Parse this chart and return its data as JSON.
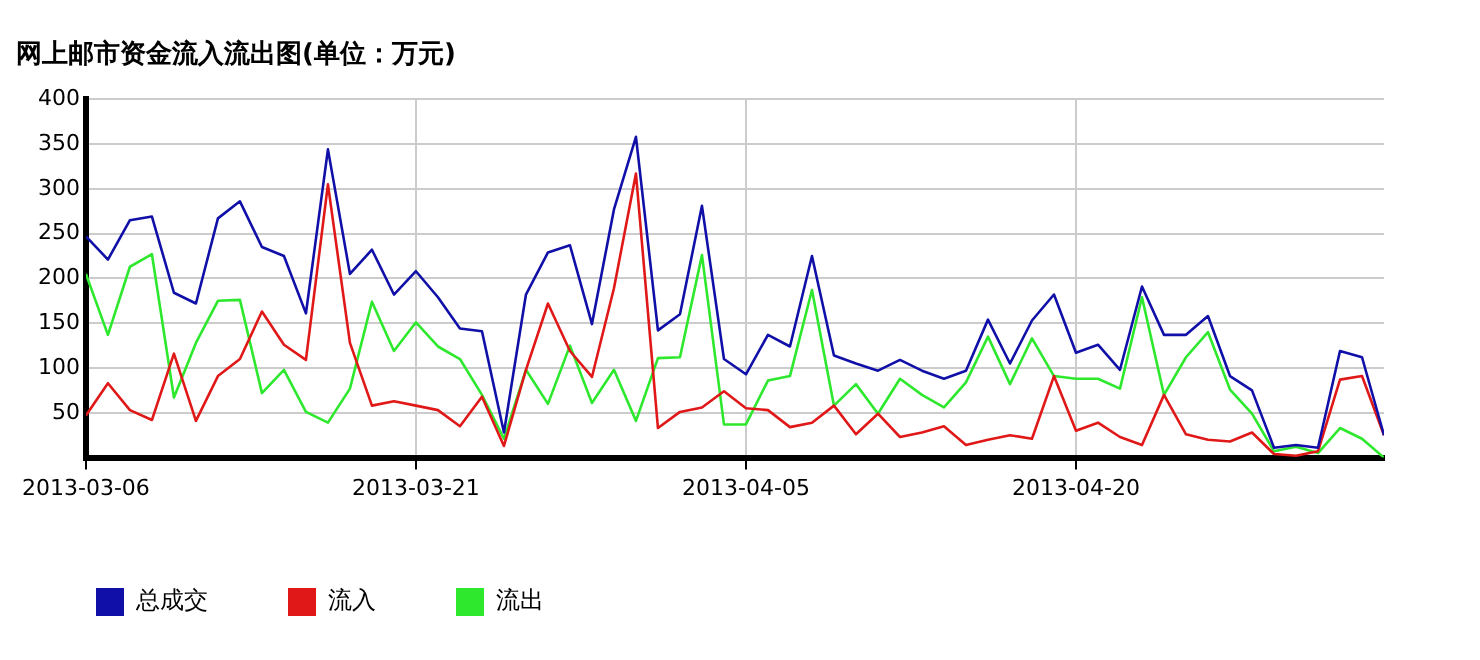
{
  "chart_data": {
    "type": "line",
    "title": "网上邮市资金流入流出图(单位：万元)",
    "x": [
      "2013-03-06",
      "2013-03-07",
      "2013-03-08",
      "2013-03-09",
      "2013-03-10",
      "2013-03-11",
      "2013-03-12",
      "2013-03-13",
      "2013-03-14",
      "2013-03-15",
      "2013-03-16",
      "2013-03-17",
      "2013-03-18",
      "2013-03-19",
      "2013-03-20",
      "2013-03-21",
      "2013-03-22",
      "2013-03-23",
      "2013-03-24",
      "2013-03-25",
      "2013-03-26",
      "2013-03-27",
      "2013-03-28",
      "2013-03-29",
      "2013-03-30",
      "2013-03-31",
      "2013-04-01",
      "2013-04-02",
      "2013-04-03",
      "2013-04-04",
      "2013-04-05",
      "2013-04-06",
      "2013-04-07",
      "2013-04-08",
      "2013-04-09",
      "2013-04-10",
      "2013-04-11",
      "2013-04-12",
      "2013-04-13",
      "2013-04-14",
      "2013-04-15",
      "2013-04-16",
      "2013-04-17",
      "2013-04-18",
      "2013-04-19",
      "2013-04-20",
      "2013-04-21",
      "2013-04-22",
      "2013-04-23",
      "2013-04-24",
      "2013-04-25",
      "2013-04-26",
      "2013-04-27",
      "2013-04-28",
      "2013-04-29",
      "2013-04-30",
      "2013-05-01",
      "2013-05-02",
      "2013-05-03",
      "2013-05-04"
    ],
    "series": [
      {
        "name": "总成交",
        "color": "#1010a8",
        "values": [
          247,
          221,
          265,
          269,
          184,
          172,
          267,
          286,
          235,
          225,
          161,
          344,
          205,
          232,
          182,
          208,
          179,
          144,
          141,
          28,
          182,
          229,
          237,
          149,
          277,
          358,
          142,
          160,
          281,
          110,
          93,
          137,
          124,
          225,
          114,
          105,
          97,
          109,
          97,
          88,
          97,
          154,
          105,
          153,
          182,
          117,
          126,
          98,
          191,
          137,
          137,
          158,
          91,
          75,
          11,
          14,
          11,
          119,
          112,
          25
        ]
      },
      {
        "name": "流入",
        "color": "#e01818",
        "values": [
          47,
          83,
          53,
          42,
          116,
          41,
          91,
          110,
          163,
          126,
          109,
          305,
          128,
          58,
          63,
          58,
          53,
          35,
          68,
          13,
          98,
          172,
          119,
          90,
          189,
          317,
          33,
          51,
          56,
          74,
          55,
          53,
          34,
          39,
          58,
          26,
          49,
          23,
          28,
          35,
          14,
          20,
          25,
          21,
          91,
          30,
          39,
          23,
          14,
          70,
          26,
          20,
          18,
          28,
          4,
          2,
          7,
          87,
          91,
          25
        ]
      },
      {
        "name": "流出",
        "color": "#2ee82e",
        "values": [
          205,
          137,
          213,
          227,
          67,
          128,
          175,
          176,
          72,
          98,
          51,
          39,
          77,
          174,
          119,
          151,
          124,
          110,
          70,
          21,
          98,
          60,
          125,
          61,
          98,
          41,
          111,
          112,
          226,
          37,
          37,
          86,
          91,
          187,
          58,
          82,
          49,
          88,
          70,
          56,
          84,
          135,
          82,
          133,
          91,
          88,
          88,
          77,
          179,
          70,
          112,
          140,
          76,
          49,
          7,
          12,
          5,
          33,
          21,
          0
        ]
      }
    ],
    "xlim": [
      "2013-03-06",
      "2013-05-04"
    ],
    "xticks": [
      "2013-03-06",
      "2013-03-21",
      "2013-04-05",
      "2013-04-20"
    ],
    "ylim": [
      0,
      400
    ],
    "yticks": [
      50,
      100,
      150,
      200,
      250,
      300,
      350,
      400
    ],
    "grid": true,
    "legend": "bottom left",
    "marker": "none",
    "line_style": "solid"
  }
}
